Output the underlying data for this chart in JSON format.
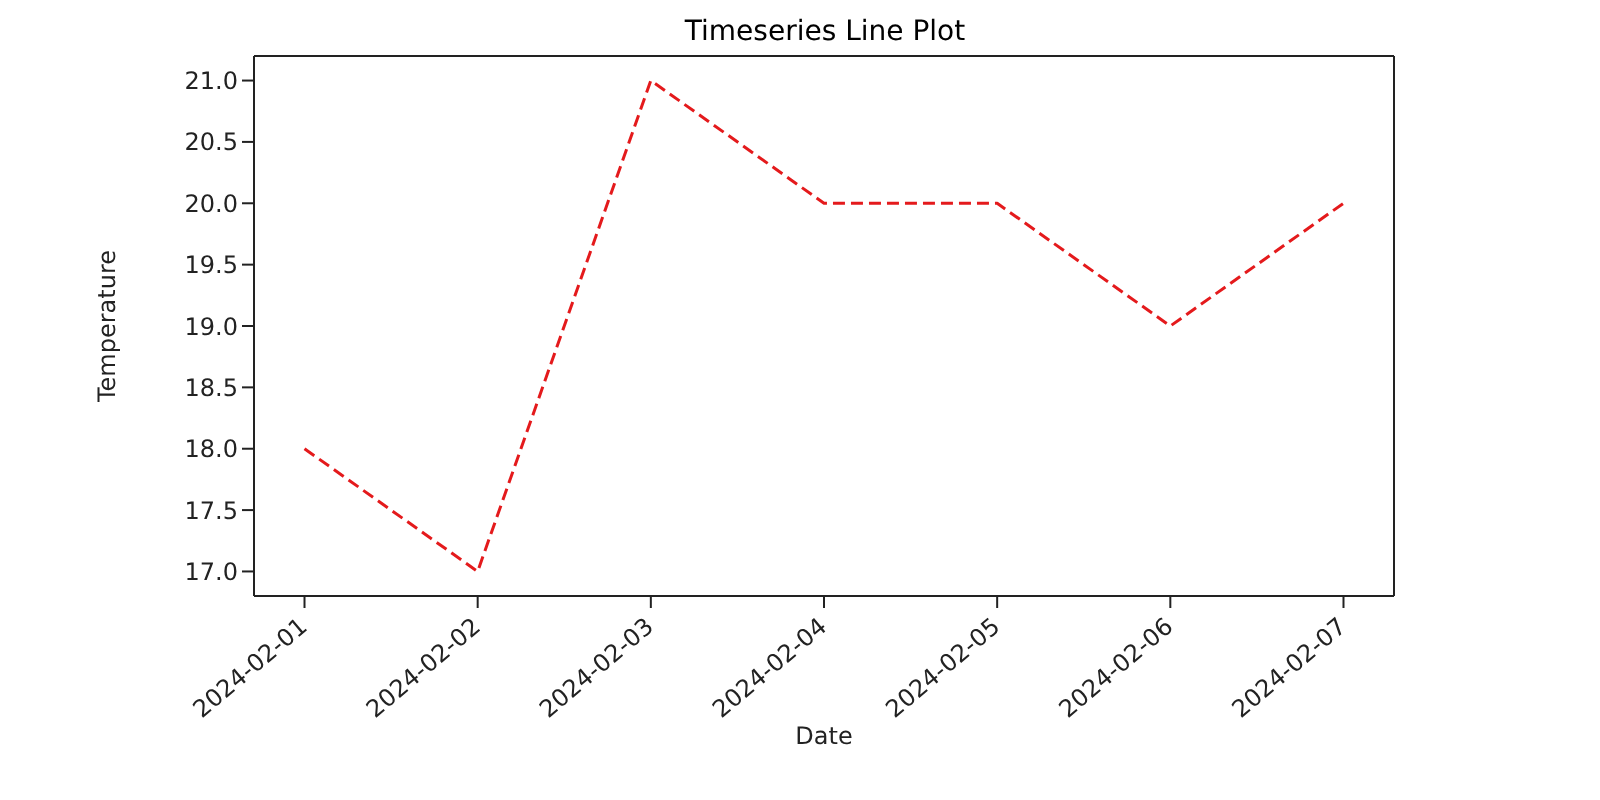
{
  "chart_data": {
    "type": "line",
    "title": "Timeseries Line Plot",
    "xlabel": "Date",
    "ylabel": "Temperature",
    "x": [
      "2024-02-01",
      "2024-02-02",
      "2024-02-03",
      "2024-02-04",
      "2024-02-05",
      "2024-02-06",
      "2024-02-07"
    ],
    "series": [
      {
        "color": "#e41a1c",
        "values": [
          18,
          17,
          21,
          20,
          20,
          19,
          20
        ]
      }
    ],
    "xlim": [
      "2024-01-31T17:00",
      "2024-02-07T07:00"
    ],
    "xticks": [
      "2024-02-01",
      "2024-02-02",
      "2024-02-03",
      "2024-02-04",
      "2024-02-05",
      "2024-02-06",
      "2024-02-07"
    ],
    "ylim": [
      16.8,
      21.2
    ],
    "yticks": [
      {
        "value": 17,
        "label": "17.0"
      },
      17.5,
      {
        "value": 18,
        "label": "18.0"
      },
      18.5,
      {
        "value": 19,
        "label": "19.0"
      },
      19.5,
      {
        "value": 20,
        "label": "20.0"
      },
      20.5,
      {
        "value": 21,
        "label": "21.0"
      }
    ],
    "grid": false,
    "marker": "none",
    "line_style": "dashed",
    "legend": false
  }
}
